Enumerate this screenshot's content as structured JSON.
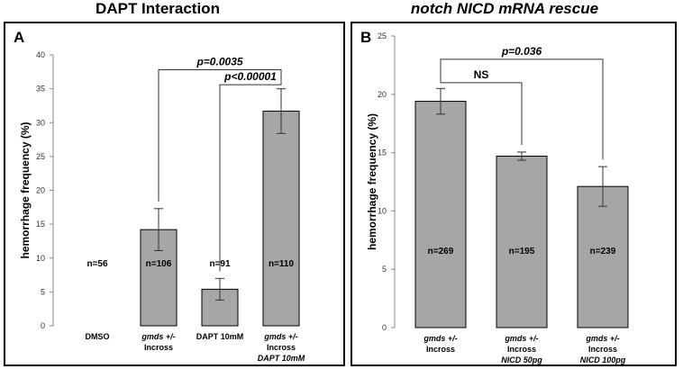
{
  "charts": [
    {
      "title": "DAPT Interaction",
      "letter": "A",
      "chart_data": {
        "type": "bar",
        "ylabel": "hemorrhage frequency (%)",
        "ylim": [
          0,
          40
        ],
        "yticks": [
          0,
          5,
          10,
          15,
          20,
          25,
          30,
          35,
          40
        ],
        "categories": [
          [
            "DMSO"
          ],
          [
            "gmds +/-",
            "Incross"
          ],
          [
            "DAPT 10mM"
          ],
          [
            "gmds +/-",
            "Incross",
            "DAPT 10mM"
          ]
        ],
        "values": [
          0,
          14.2,
          5.4,
          31.7
        ],
        "errors": [
          0,
          3.1,
          1.6,
          3.3
        ],
        "n_labels": [
          "n=56",
          "n=106",
          "n=91",
          "n=110"
        ],
        "brackets": [
          {
            "from": 1,
            "to": 3,
            "label": "p=0.0035",
            "y": 37.8
          },
          {
            "from": 2,
            "to": 3,
            "label": "p<0.00001",
            "y": 35.6
          }
        ],
        "bar_color": "#a6a6a6"
      }
    },
    {
      "title": "notch NICD mRNA rescue",
      "letter": "B",
      "chart_data": {
        "type": "bar",
        "ylabel": "hemorrhage frequency (%)",
        "ylim": [
          0,
          25
        ],
        "yticks": [
          0,
          5,
          10,
          15,
          20,
          25
        ],
        "categories": [
          [
            "gmds +/-",
            "Incross"
          ],
          [
            "gmds +/-",
            "Incross",
            "NICD 50pg"
          ],
          [
            "gmds +/-",
            "Incross",
            "NICD 100pg"
          ]
        ],
        "values": [
          19.4,
          14.7,
          12.1
        ],
        "errors": [
          1.1,
          0.35,
          1.7
        ],
        "n_labels": [
          "n=269",
          "n=195",
          "n=239"
        ],
        "brackets": [
          {
            "from": 0,
            "to": 2,
            "label": "p=0.036",
            "y": 23.0
          },
          {
            "from": 0,
            "to": 1,
            "label": "NS",
            "y": 21.0
          }
        ],
        "bar_color": "#a6a6a6"
      }
    }
  ]
}
